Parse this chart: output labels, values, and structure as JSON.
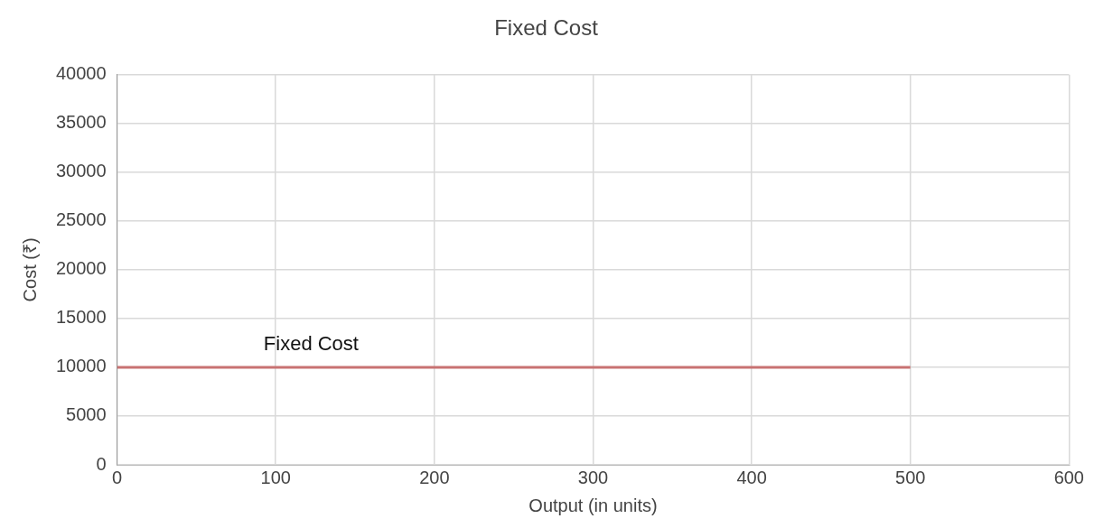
{
  "chart_data": {
    "type": "line",
    "title": "Fixed Cost",
    "xlabel": "Output (in units)",
    "ylabel": "Cost (₹)",
    "xlim": [
      0,
      600
    ],
    "xticks": [
      0,
      100,
      200,
      300,
      400,
      500,
      600
    ],
    "ylim": [
      0,
      40000
    ],
    "yticks": [
      0,
      5000,
      10000,
      15000,
      20000,
      25000,
      30000,
      35000,
      40000
    ],
    "grid": true,
    "legend": false,
    "marker": "none",
    "line_style": "solid",
    "series": [
      {
        "name": "Fixed Cost",
        "color": "#c87272",
        "x": [
          0,
          500
        ],
        "values": [
          10000,
          10000
        ]
      }
    ]
  }
}
